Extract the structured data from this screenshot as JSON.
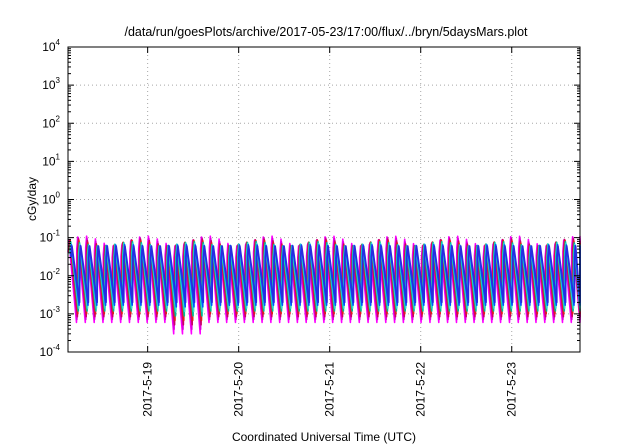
{
  "chart_data": {
    "type": "line",
    "title": "/data/run/goesPlots/archive/2017-05-23/17:00/flux/../bryn/5daysMars.plot",
    "xlabel": "Coordinated Universal Time (UTC)",
    "ylabel": "cGy/day",
    "x_scale": "time",
    "y_scale": "log",
    "xlim": [
      "2017-05-18T03:00",
      "2017-05-23T18:00"
    ],
    "ylim": [
      0.0001,
      10000
    ],
    "x_ticks": [
      "2017-5-19",
      "2017-5-20",
      "2017-5-21",
      "2017-5-22",
      "2017-5-23"
    ],
    "y_ticks": [
      {
        "base": "10",
        "exp": "-4"
      },
      {
        "base": "10",
        "exp": "-3"
      },
      {
        "base": "10",
        "exp": "-2"
      },
      {
        "base": "10",
        "exp": "-1"
      },
      {
        "base": "10",
        "exp": "0"
      },
      {
        "base": "10",
        "exp": "1"
      },
      {
        "base": "10",
        "exp": "2"
      },
      {
        "base": "10",
        "exp": "3"
      },
      {
        "base": "10",
        "exp": "4"
      }
    ],
    "grid": true,
    "legend": "none",
    "series_colors": [
      "#ff00ff",
      "#dd00dd",
      "#cc0066",
      "#e0201a",
      "#00bb99",
      "#33ddcc",
      "#0055ff",
      "#2a2ae0"
    ],
    "sawtooth": {
      "period_hours": 2.33,
      "peak_range": [
        0.04,
        0.11
      ],
      "trough_range": [
        0.0004,
        0.002
      ]
    }
  }
}
